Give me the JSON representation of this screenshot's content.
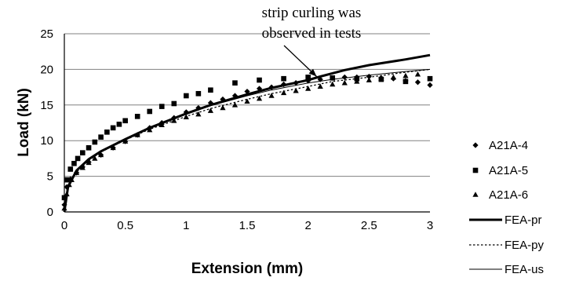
{
  "chart_data": {
    "type": "scatter",
    "xlabel": "Extension (mm)",
    "ylabel": "Load (kN)",
    "xlim": [
      0,
      3
    ],
    "ylim": [
      0,
      25
    ],
    "xticks": [
      "0",
      "0.5",
      "1",
      "1.5",
      "2",
      "2.5",
      "3"
    ],
    "yticks": [
      "0",
      "5",
      "10",
      "15",
      "20",
      "25"
    ],
    "grid": "horizontal",
    "legend_position": "right",
    "annotation": {
      "lines": [
        "strip curling was",
        "observed in tests"
      ],
      "target": [
        2.07,
        19.0
      ]
    },
    "series": [
      {
        "name": "A21A-4",
        "kind": "scatter",
        "marker": "diamond",
        "x": [
          0.0,
          0.02,
          0.05,
          0.1,
          0.15,
          0.2,
          0.3,
          0.4,
          0.5,
          0.6,
          0.7,
          0.8,
          0.9,
          1.0,
          1.1,
          1.2,
          1.3,
          1.4,
          1.5,
          1.6,
          1.7,
          1.8,
          1.9,
          2.0,
          2.1,
          2.2,
          2.3,
          2.4,
          2.5,
          2.6,
          2.7,
          2.8,
          2.9,
          3.0
        ],
        "y": [
          1.0,
          3.5,
          4.6,
          5.5,
          6.3,
          7.0,
          8.0,
          9.0,
          9.9,
          10.8,
          11.8,
          12.5,
          13.2,
          14.0,
          14.6,
          15.3,
          15.8,
          16.3,
          16.9,
          17.3,
          17.5,
          17.9,
          18.1,
          18.4,
          18.6,
          18.8,
          18.9,
          18.9,
          19.0,
          18.8,
          18.7,
          18.4,
          18.2,
          17.8
        ]
      },
      {
        "name": "A21A-5",
        "kind": "scatter",
        "marker": "square",
        "x": [
          0.0,
          0.02,
          0.05,
          0.08,
          0.11,
          0.15,
          0.2,
          0.25,
          0.3,
          0.35,
          0.4,
          0.45,
          0.5,
          0.6,
          0.7,
          0.8,
          0.9,
          1.0,
          1.1,
          1.2,
          1.4,
          1.6,
          1.8,
          2.0,
          2.2,
          2.4,
          2.6,
          2.8,
          3.0
        ],
        "y": [
          2.0,
          4.5,
          6.0,
          6.8,
          7.5,
          8.3,
          9.0,
          9.8,
          10.5,
          11.2,
          11.8,
          12.3,
          12.8,
          13.4,
          14.1,
          14.8,
          15.2,
          16.3,
          16.6,
          17.1,
          18.1,
          18.5,
          18.7,
          18.9,
          18.8,
          18.7,
          18.6,
          18.3,
          18.7
        ]
      },
      {
        "name": "A21A-6",
        "kind": "scatter",
        "marker": "triangle",
        "x": [
          0.0,
          0.02,
          0.04,
          0.06,
          0.1,
          0.15,
          0.2,
          0.25,
          0.3,
          0.4,
          0.5,
          0.6,
          0.7,
          0.8,
          0.9,
          1.0,
          1.1,
          1.2,
          1.3,
          1.4,
          1.5,
          1.6,
          1.7,
          1.8,
          1.9,
          2.0,
          2.1,
          2.2,
          2.3,
          2.4,
          2.5,
          2.6,
          2.7,
          2.8,
          2.9
        ],
        "y": [
          0.5,
          2.5,
          3.8,
          4.5,
          5.5,
          6.2,
          6.9,
          7.5,
          8.0,
          9.0,
          9.9,
          10.8,
          11.5,
          12.2,
          12.8,
          13.3,
          13.7,
          14.2,
          14.6,
          15.0,
          15.5,
          15.9,
          16.3,
          16.7,
          17.0,
          17.3,
          17.6,
          17.9,
          18.1,
          18.3,
          18.5,
          18.7,
          18.9,
          19.1,
          19.3
        ]
      },
      {
        "name": "FEA-pr",
        "kind": "line",
        "style": "thick",
        "x": [
          0.0,
          0.03,
          0.1,
          0.2,
          0.3,
          0.5,
          0.7,
          1.0,
          1.2,
          1.5,
          1.7,
          2.0,
          2.1,
          2.3,
          2.5,
          2.8,
          3.0
        ],
        "y": [
          0.0,
          3.5,
          5.8,
          7.4,
          8.5,
          10.2,
          11.8,
          13.8,
          15.0,
          16.5,
          17.4,
          18.5,
          19.0,
          19.9,
          20.6,
          21.4,
          22.0
        ]
      },
      {
        "name": "FEA-py",
        "kind": "line",
        "style": "dotted",
        "x": [
          0.0,
          0.03,
          0.1,
          0.2,
          0.3,
          0.5,
          0.7,
          1.0,
          1.2,
          1.5,
          1.7,
          2.0,
          2.2,
          2.5,
          2.8,
          3.0
        ],
        "y": [
          0.0,
          3.4,
          5.6,
          7.2,
          8.4,
          10.1,
          11.6,
          13.4,
          14.5,
          15.8,
          16.6,
          17.6,
          18.3,
          18.9,
          19.6,
          20.0
        ]
      },
      {
        "name": "FEA-us",
        "kind": "line",
        "style": "thin",
        "x": [
          0.0,
          0.03,
          0.1,
          0.2,
          0.3,
          0.5,
          0.7,
          1.0,
          1.2,
          1.5,
          1.7,
          2.0,
          2.2,
          2.5,
          2.8,
          3.0
        ],
        "y": [
          0.0,
          3.5,
          5.8,
          7.4,
          8.5,
          10.2,
          11.7,
          13.7,
          14.9,
          16.3,
          17.1,
          18.1,
          18.6,
          19.2,
          19.7,
          20.0
        ]
      }
    ]
  }
}
